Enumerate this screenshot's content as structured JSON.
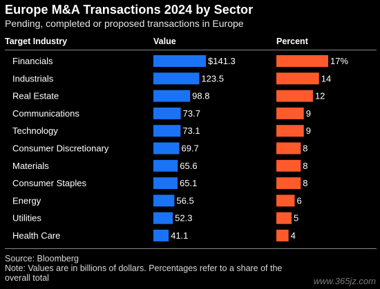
{
  "title": "Europe M&A Transactions 2024 by Sector",
  "subtitle": "Pending, completed or proposed transactions in Europe",
  "columns": {
    "industry": "Target Industry",
    "value": "Value",
    "percent": "Percent"
  },
  "footer": {
    "source": "Source: Bloomberg",
    "note": "Note: Values are in billions of dollars. Percentages refer to a share of the overall total"
  },
  "watermark": "www.365jz.com",
  "colors": {
    "value_bar": "#1a73f5",
    "percent_bar": "#ff5a2b"
  },
  "chart_data": {
    "type": "bar",
    "categories": [
      "Financials",
      "Industrials",
      "Real Estate",
      "Communications",
      "Technology",
      "Consumer Discretionary",
      "Materials",
      "Consumer Staples",
      "Energy",
      "Utilities",
      "Health Care"
    ],
    "series": [
      {
        "name": "Value",
        "values": [
          141.3,
          123.5,
          98.8,
          73.7,
          73.1,
          69.7,
          65.6,
          65.1,
          56.5,
          52.3,
          41.1
        ],
        "labels": [
          "$141.3",
          "123.5",
          "98.8",
          "73.7",
          "73.1",
          "69.7",
          "65.6",
          "65.1",
          "56.5",
          "52.3",
          "41.1"
        ]
      },
      {
        "name": "Percent",
        "values": [
          17,
          14,
          12,
          9,
          9,
          8,
          8,
          8,
          6,
          5,
          4
        ],
        "labels": [
          "17%",
          "14",
          "12",
          "9",
          "9",
          "8",
          "8",
          "8",
          "6",
          "5",
          "4"
        ]
      }
    ]
  }
}
